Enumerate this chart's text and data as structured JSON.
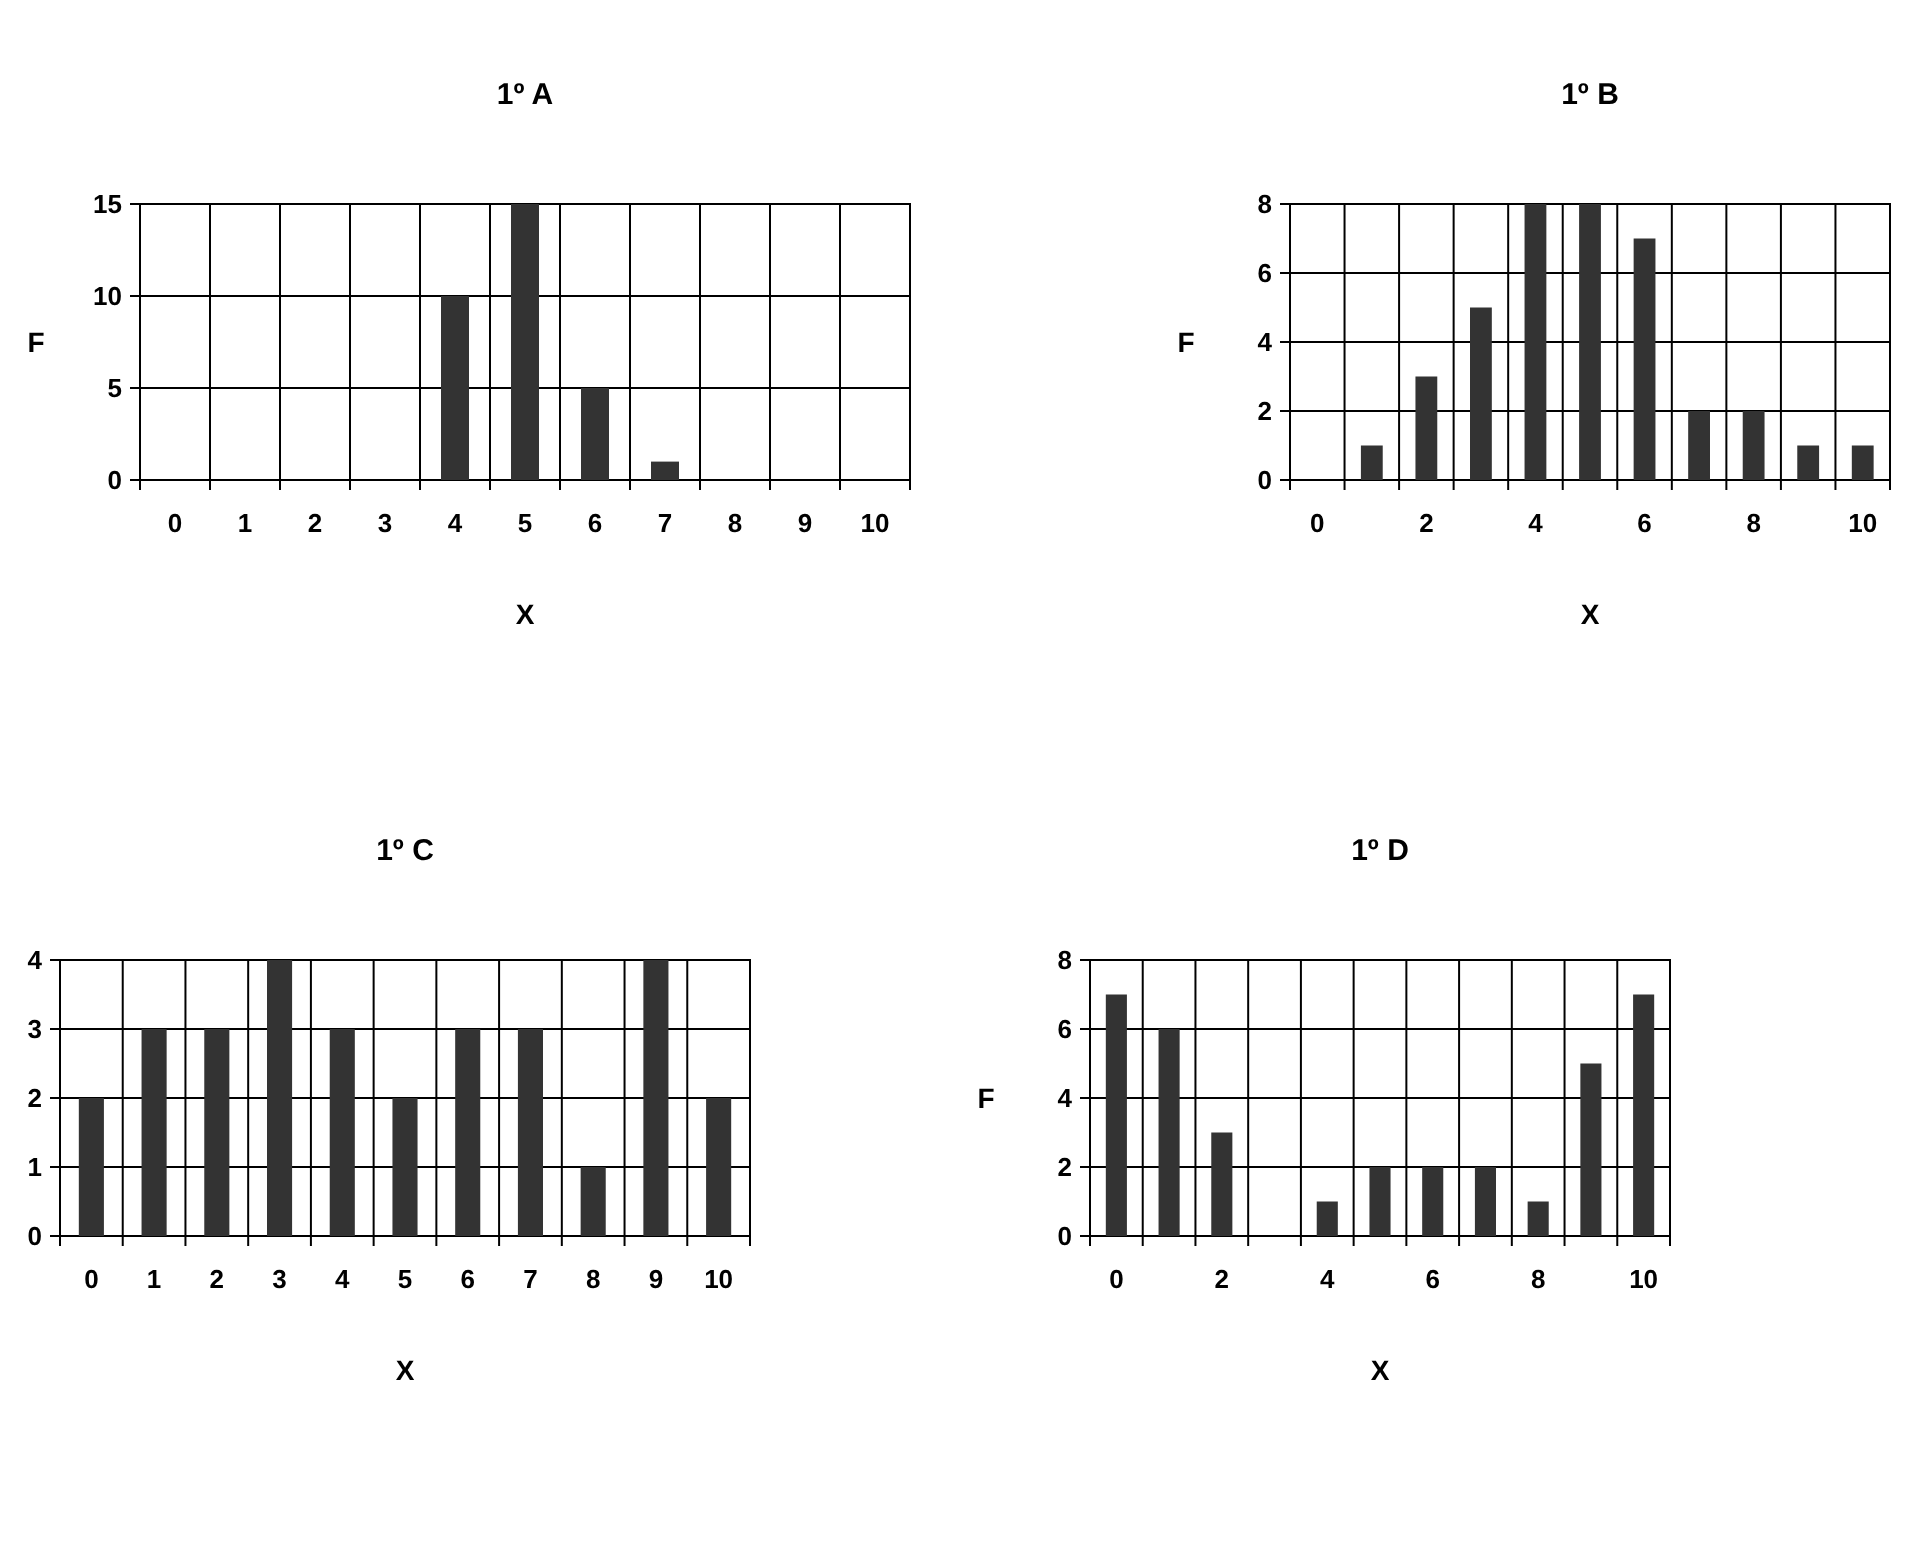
{
  "chart_data": [
    {
      "type": "bar",
      "title": "1º A",
      "xlabel": "X",
      "ylabel": "F",
      "categories": [
        "0",
        "1",
        "2",
        "3",
        "4",
        "5",
        "6",
        "7",
        "8",
        "9",
        "10"
      ],
      "values": [
        0,
        0,
        0,
        0,
        10,
        15,
        5,
        1,
        0,
        0,
        0
      ],
      "color": "#333333",
      "ylim": [
        0,
        15
      ],
      "yticks": [
        0,
        5,
        10,
        15
      ],
      "grid": true
    },
    {
      "type": "bar",
      "title": "1º B",
      "xlabel": "X",
      "ylabel": "F",
      "categories": [
        "0",
        null,
        "2",
        null,
        "4",
        null,
        "6",
        null,
        "8",
        null,
        "10"
      ],
      "values": [
        0,
        1,
        3,
        5,
        8,
        8,
        7,
        2,
        2,
        1,
        1
      ],
      "color": "#333333",
      "ylim": [
        0,
        8
      ],
      "yticks": [
        0,
        2,
        4,
        6,
        8
      ],
      "grid": true
    },
    {
      "type": "bar",
      "title": "1º C",
      "xlabel": "X",
      "categories": [
        "0",
        "1",
        "2",
        "3",
        "4",
        "5",
        "6",
        "7",
        "8",
        "9",
        "10"
      ],
      "values": [
        2,
        3,
        3,
        4,
        3,
        2,
        3,
        3,
        1,
        4,
        2
      ],
      "color": "#333333",
      "ylim": [
        0,
        4
      ],
      "yticks": [
        0,
        1,
        2,
        3,
        4
      ],
      "grid": true
    },
    {
      "type": "bar",
      "title": "1º D",
      "xlabel": "X",
      "ylabel": "F",
      "categories": [
        "0",
        null,
        "2",
        null,
        "4",
        null,
        "6",
        null,
        "8",
        null,
        "10"
      ],
      "values": [
        7,
        6,
        3,
        0,
        1,
        2,
        2,
        2,
        1,
        5,
        7
      ],
      "color": "#333333",
      "ylim": [
        0,
        8
      ],
      "yticks": [
        0,
        2,
        4,
        6,
        8
      ],
      "grid": true
    }
  ]
}
